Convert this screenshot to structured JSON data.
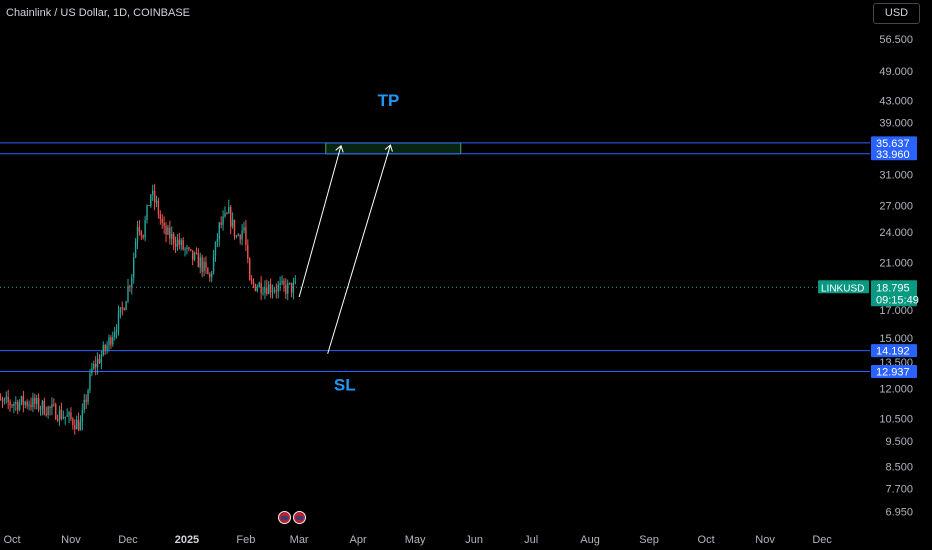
{
  "header": {
    "title": "Chainlink / US Dollar, 1D, COINBASE"
  },
  "toolbar": {
    "currency": "USD"
  },
  "colors": {
    "up": "#26a69a",
    "down": "#ef5350",
    "level_line": "#2962ff",
    "badge_blue": "#2962ff",
    "badge_green": "#089981",
    "annotation": "#2196f3",
    "tp_zone": "#1a7a3a"
  },
  "events": [
    "us-flag-icon",
    "us-flag-icon"
  ],
  "chart_data": {
    "type": "candlestick",
    "symbol": "LINKUSD",
    "y_scale": "log",
    "ylim": [
      6.7,
      62
    ],
    "x_tick_labels": [
      "Oct",
      "Nov",
      "Dec",
      "2025",
      "Feb",
      "Mar",
      "Apr",
      "May",
      "Jun",
      "Jul",
      "Aug",
      "Sep",
      "Oct",
      "Nov",
      "Dec"
    ],
    "y_tick_labels": [
      56.5,
      49.0,
      43.0,
      39.0,
      31.0,
      27.0,
      24.0,
      21.0,
      17.0,
      15.0,
      13.5,
      12.0,
      10.5,
      9.5,
      8.5,
      7.7,
      6.95
    ],
    "last_price": {
      "label": "LINKUSD",
      "price": "18.795",
      "countdown": "09:15:49",
      "value": 18.795
    },
    "levels": [
      {
        "value": 35.637,
        "label": "35.637"
      },
      {
        "value": 33.96,
        "label": "33.960"
      },
      {
        "value": 14.192,
        "label": "14.192"
      },
      {
        "value": 12.937,
        "label": "12.937"
      }
    ],
    "tp_zone": {
      "price_low": 33.96,
      "price_high": 35.637,
      "start": "2025-03-15",
      "end": "2025-05-25"
    },
    "annotations": [
      {
        "text": "TP",
        "date": "2025-04-17",
        "price": 42.0
      },
      {
        "text": "SL",
        "date": "2025-03-25",
        "price": 11.9
      }
    ],
    "arrows": [
      {
        "from_date": "2025-03-01",
        "from_price": 18.0,
        "to_date": "2025-03-23",
        "to_price": 35.2
      },
      {
        "from_date": "2025-03-16",
        "from_price": 14.0,
        "to_date": "2025-04-18",
        "to_price": 35.3
      }
    ],
    "anchors": [
      {
        "date": "2024-09-20",
        "price": 11.2
      },
      {
        "date": "2024-10-10",
        "price": 11.3
      },
      {
        "date": "2024-10-25",
        "price": 10.8
      },
      {
        "date": "2024-11-06",
        "price": 10.2
      },
      {
        "date": "2024-11-12",
        "price": 13.0
      },
      {
        "date": "2024-11-20",
        "price": 14.5
      },
      {
        "date": "2024-11-28",
        "price": 17.0
      },
      {
        "date": "2024-12-03",
        "price": 20.0
      },
      {
        "date": "2024-12-06",
        "price": 25.0
      },
      {
        "date": "2024-12-09",
        "price": 24.0
      },
      {
        "date": "2024-12-13",
        "price": 28.5
      },
      {
        "date": "2024-12-16",
        "price": 27.0
      },
      {
        "date": "2024-12-20",
        "price": 24.0
      },
      {
        "date": "2024-12-27",
        "price": 23.0
      },
      {
        "date": "2025-01-03",
        "price": 21.5
      },
      {
        "date": "2025-01-08",
        "price": 21.0
      },
      {
        "date": "2025-01-13",
        "price": 19.5
      },
      {
        "date": "2025-01-18",
        "price": 24.5
      },
      {
        "date": "2025-01-23",
        "price": 26.0
      },
      {
        "date": "2025-01-27",
        "price": 23.5
      },
      {
        "date": "2025-01-31",
        "price": 24.5
      },
      {
        "date": "2025-02-03",
        "price": 19.0
      },
      {
        "date": "2025-02-08",
        "price": 19.0
      },
      {
        "date": "2025-02-15",
        "price": 18.8
      },
      {
        "date": "2025-02-22",
        "price": 18.7
      },
      {
        "date": "2025-02-27",
        "price": 18.795
      }
    ]
  }
}
